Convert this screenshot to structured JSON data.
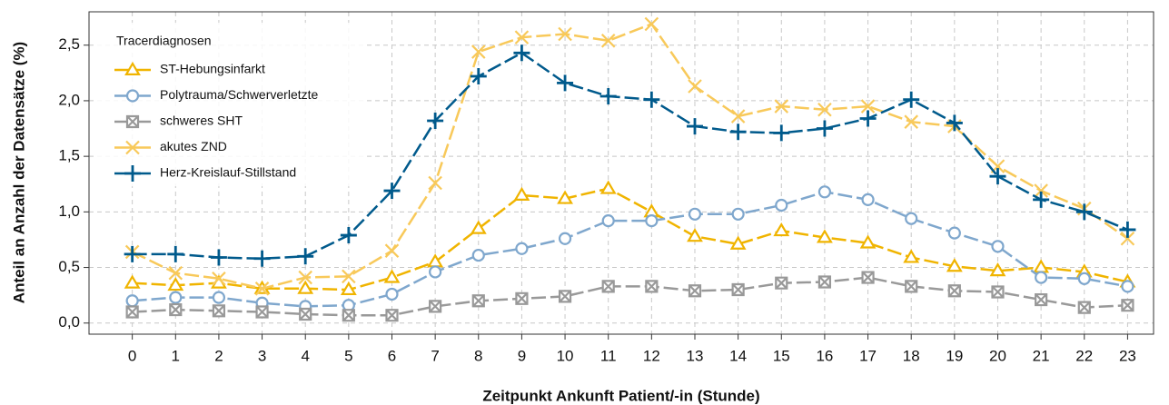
{
  "chart_data": {
    "type": "line",
    "xlabel": "Zeitpunkt Ankunft Patient/-in (Stunde)",
    "ylabel": "Anteil an Anzahl der Datensätze (%)",
    "legend_title": "Tracerdiagnosen",
    "legend": "upper left",
    "grid": true,
    "x": [
      0,
      1,
      2,
      3,
      4,
      5,
      6,
      7,
      8,
      9,
      10,
      11,
      12,
      13,
      14,
      15,
      16,
      17,
      18,
      19,
      20,
      21,
      22,
      23
    ],
    "xlim": [
      -1,
      23.6
    ],
    "xticks": [
      0,
      1,
      2,
      3,
      4,
      5,
      6,
      7,
      8,
      9,
      10,
      11,
      12,
      13,
      14,
      15,
      16,
      17,
      18,
      19,
      20,
      21,
      22,
      23
    ],
    "ylim": [
      -0.1,
      2.8
    ],
    "yticks": [
      {
        "value": 0,
        "label": "0,0"
      },
      {
        "value": 0.5,
        "label": "0,5"
      },
      {
        "value": 1,
        "label": "1,0"
      },
      {
        "value": 1.5,
        "label": "1,5"
      },
      {
        "value": 2,
        "label": "2,0"
      },
      {
        "value": 2.5,
        "label": "2,5"
      }
    ],
    "series": [
      {
        "name": "ST-Hebungsinfarkt",
        "color": "#f0b400",
        "marker": "triangle",
        "values": [
          0.36,
          0.34,
          0.36,
          0.31,
          0.31,
          0.3,
          0.41,
          0.55,
          0.85,
          1.15,
          1.12,
          1.21,
          1.0,
          0.78,
          0.71,
          0.83,
          0.77,
          0.72,
          0.59,
          0.51,
          0.47,
          0.5,
          0.46,
          0.37
        ]
      },
      {
        "name": "Polytrauma/Schwerverletzte",
        "color": "#7fa7cd",
        "marker": "circle",
        "values": [
          0.2,
          0.23,
          0.23,
          0.18,
          0.15,
          0.16,
          0.26,
          0.46,
          0.61,
          0.67,
          0.76,
          0.92,
          0.92,
          0.98,
          0.98,
          1.06,
          1.18,
          1.11,
          0.94,
          0.81,
          0.69,
          0.41,
          0.4,
          0.33
        ]
      },
      {
        "name": "schweres SHT",
        "color": "#999999",
        "marker": "square-x",
        "values": [
          0.1,
          0.12,
          0.11,
          0.1,
          0.08,
          0.07,
          0.07,
          0.15,
          0.2,
          0.22,
          0.24,
          0.33,
          0.33,
          0.29,
          0.3,
          0.36,
          0.37,
          0.41,
          0.33,
          0.29,
          0.28,
          0.21,
          0.14,
          0.16
        ]
      },
      {
        "name": "akutes ZND",
        "color": "#f8c95a",
        "marker": "x",
        "values": [
          0.64,
          0.45,
          0.4,
          0.31,
          0.41,
          0.42,
          0.65,
          1.26,
          2.44,
          2.57,
          2.6,
          2.54,
          2.69,
          2.13,
          1.86,
          1.95,
          1.92,
          1.95,
          1.81,
          1.77,
          1.41,
          1.19,
          1.03,
          0.76
        ]
      },
      {
        "name": "Herz-Kreislauf-Stillstand",
        "color": "#005a8c",
        "marker": "plus",
        "values": [
          0.62,
          0.62,
          0.59,
          0.58,
          0.6,
          0.79,
          1.19,
          1.82,
          2.22,
          2.43,
          2.16,
          2.04,
          2.01,
          1.77,
          1.72,
          1.71,
          1.75,
          1.84,
          2.01,
          1.8,
          1.32,
          1.11,
          1.0,
          0.84
        ]
      }
    ]
  }
}
